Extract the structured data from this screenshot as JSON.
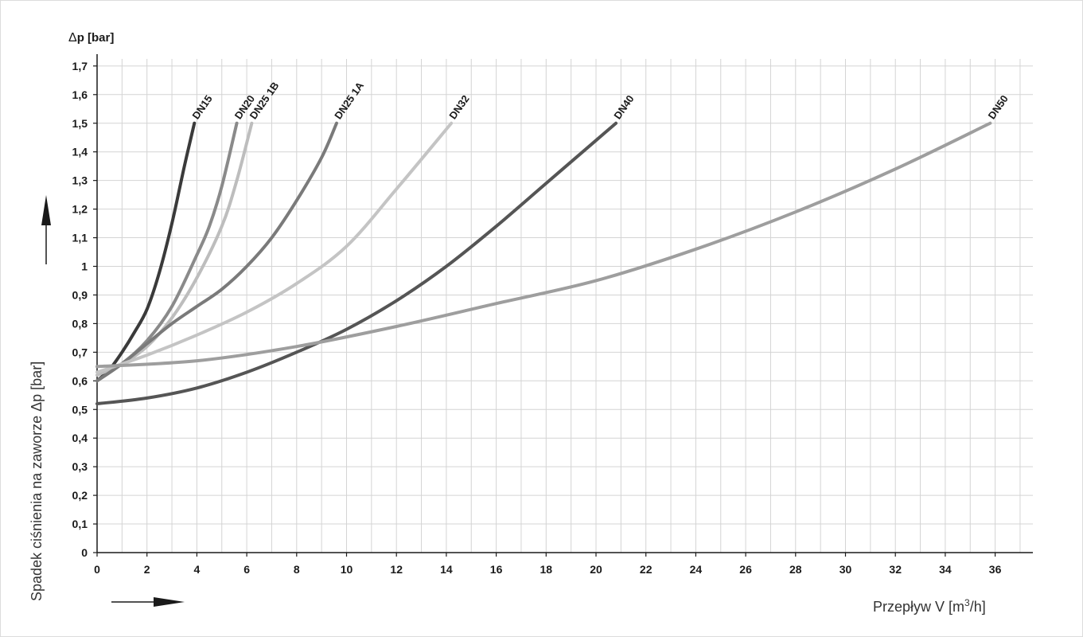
{
  "chart_data": {
    "type": "line",
    "ylabel_top_symbol": "Δ",
    "ylabel_top": "p [bar]",
    "ylabel_side": "Spadek ciśnienia na zaworze Δp [bar]",
    "xlabel_main": "Przepływ V [m",
    "xlabel_sup": "3",
    "xlabel_tail": "/h]",
    "xlim": [
      0,
      37
    ],
    "ylim": [
      0,
      1.75
    ],
    "grid": true,
    "x_ticks": [
      0,
      2,
      4,
      6,
      8,
      10,
      12,
      14,
      16,
      18,
      20,
      22,
      24,
      26,
      28,
      30,
      32,
      34,
      36
    ],
    "x_tick_labels": [
      "0",
      "2",
      "4",
      "6",
      "8",
      "10",
      "12",
      "14",
      "16",
      "18",
      "20",
      "22",
      "24",
      "26",
      "28",
      "30",
      "32",
      "34",
      "36"
    ],
    "y_ticks": [
      0,
      0.1,
      0.2,
      0.3,
      0.4,
      0.5,
      0.6,
      0.7,
      0.8,
      0.9,
      1.0,
      1.1,
      1.2,
      1.3,
      1.4,
      1.5,
      1.6,
      1.7
    ],
    "y_tick_labels": [
      "0",
      "0,1",
      "0,2",
      "0,3",
      "0,4",
      "0,5",
      "0,6",
      "0,7",
      "0,8",
      "0,9",
      "1",
      "1,1",
      "1,2",
      "1,3",
      "1,4",
      "1,5",
      "1,6",
      "1,7"
    ],
    "series": [
      {
        "name": "DN15",
        "color": "#3a3a3a",
        "x": [
          0,
          0.5,
          1,
          1.5,
          2,
          2.5,
          3,
          3.5,
          3.9
        ],
        "y": [
          0.6,
          0.64,
          0.7,
          0.77,
          0.85,
          0.98,
          1.15,
          1.35,
          1.5
        ]
      },
      {
        "name": "DN20",
        "color": "#8a8a8a",
        "x": [
          0,
          1,
          2,
          3,
          4,
          4.5,
          5,
          5.6
        ],
        "y": [
          0.6,
          0.66,
          0.74,
          0.86,
          1.04,
          1.14,
          1.28,
          1.5
        ]
      },
      {
        "name": "DN25 1B",
        "color": "#bdbdbd",
        "x": [
          0,
          1,
          2,
          3,
          4,
          5,
          5.6,
          6.2
        ],
        "y": [
          0.62,
          0.66,
          0.72,
          0.82,
          0.96,
          1.14,
          1.3,
          1.5
        ]
      },
      {
        "name": "DN25 1A",
        "color": "#7a7a7a",
        "x": [
          0,
          1,
          2,
          3,
          4,
          5,
          6,
          7,
          8,
          9,
          9.6
        ],
        "y": [
          0.6,
          0.66,
          0.73,
          0.8,
          0.86,
          0.92,
          1.0,
          1.1,
          1.23,
          1.38,
          1.5
        ]
      },
      {
        "name": "DN32",
        "color": "#c4c4c4",
        "x": [
          0,
          2,
          4,
          6,
          8,
          10,
          12,
          14.2
        ],
        "y": [
          0.63,
          0.69,
          0.76,
          0.84,
          0.94,
          1.07,
          1.27,
          1.5
        ]
      },
      {
        "name": "DN40",
        "color": "#555555",
        "x": [
          0,
          2,
          4,
          6,
          8,
          10,
          12,
          14,
          16,
          18,
          20,
          20.8
        ],
        "y": [
          0.52,
          0.54,
          0.575,
          0.63,
          0.7,
          0.78,
          0.88,
          1.0,
          1.14,
          1.29,
          1.44,
          1.5
        ]
      },
      {
        "name": "DN50",
        "color": "#9e9e9e",
        "x": [
          0,
          4,
          8,
          12,
          16,
          20,
          24,
          28,
          32,
          35.8
        ],
        "y": [
          0.65,
          0.67,
          0.72,
          0.79,
          0.87,
          0.95,
          1.06,
          1.19,
          1.34,
          1.5
        ]
      }
    ]
  }
}
